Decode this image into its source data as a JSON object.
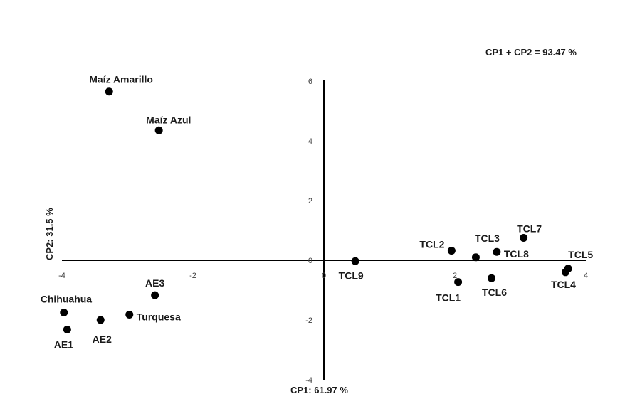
{
  "chart_data": {
    "type": "scatter",
    "title": "",
    "annotation": "CP1 + CP2 = 93.47 %",
    "xlabel": "CP1: 61.97 %",
    "ylabel": "CP2: 31.5 %",
    "xlim": [
      -4,
      4
    ],
    "ylim": [
      -4,
      6
    ],
    "xticks": [
      -4,
      -2,
      0,
      2,
      4
    ],
    "yticks": [
      -4,
      -2,
      0,
      2,
      4,
      6
    ],
    "grid": false,
    "marker_color": "#000000",
    "points": [
      {
        "label": "Maíz Amarillo",
        "x": -3.28,
        "y": 5.65,
        "label_pos": "above"
      },
      {
        "label": "Maíz Azul",
        "x": -2.52,
        "y": 4.35,
        "label_pos": "above-right"
      },
      {
        "label": "AE3",
        "x": -2.58,
        "y": -1.17,
        "label_pos": "above"
      },
      {
        "label": "Chihuahua",
        "x": -3.97,
        "y": -1.75,
        "label_pos": "above-right"
      },
      {
        "label": "AE2",
        "x": -3.41,
        "y": -2.0,
        "label_pos": "below"
      },
      {
        "label": "Turquesa",
        "x": -2.97,
        "y": -1.82,
        "label_pos": "right"
      },
      {
        "label": "AE1",
        "x": -3.92,
        "y": -2.32,
        "label_pos": "below-left"
      },
      {
        "label": "TCL9",
        "x": 0.48,
        "y": -0.03,
        "label_pos": "below"
      },
      {
        "label": "TCL2",
        "x": 1.95,
        "y": 0.32,
        "label_pos": "left"
      },
      {
        "label": "TCL3",
        "x": 2.32,
        "y": 0.1,
        "label_pos": "above-right"
      },
      {
        "label": "TCL8",
        "x": 2.64,
        "y": 0.28,
        "label_pos": "right"
      },
      {
        "label": "TCL7",
        "x": 3.05,
        "y": 0.75,
        "label_pos": "above"
      },
      {
        "label": "TCL1",
        "x": 2.05,
        "y": -0.73,
        "label_pos": "below-left"
      },
      {
        "label": "TCL6",
        "x": 2.56,
        "y": -0.6,
        "label_pos": "below"
      },
      {
        "label": "TCL5",
        "x": 3.73,
        "y": -0.28,
        "label_pos": "above-right"
      },
      {
        "label": "TCL4",
        "x": 3.69,
        "y": -0.4,
        "label_pos": "below"
      }
    ]
  }
}
